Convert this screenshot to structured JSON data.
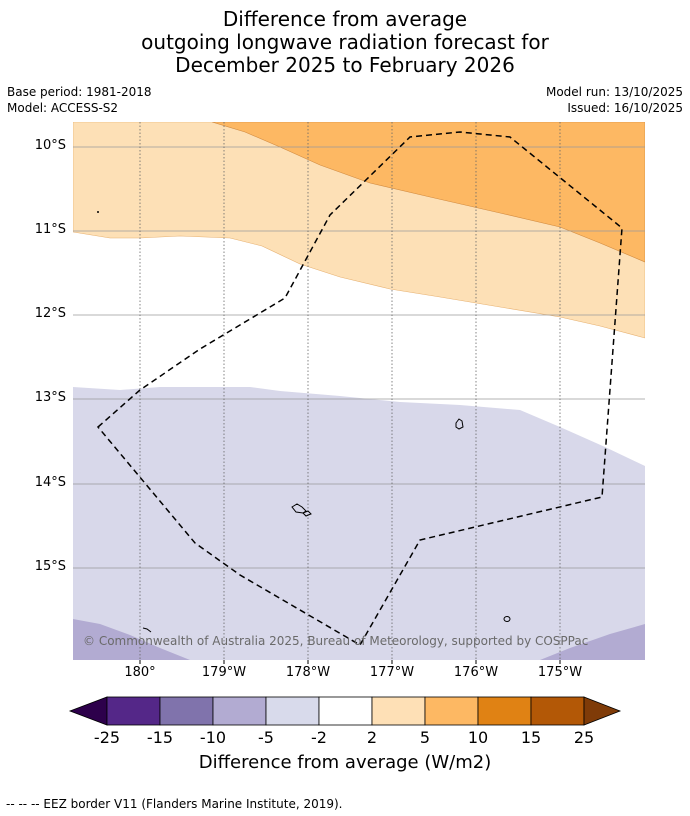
{
  "title": {
    "line1": "Difference from average",
    "line2": "outgoing longwave radiation forecast for",
    "line3": "December 2025 to February 2026"
  },
  "meta": {
    "base_period": "Base period: 1981-2018",
    "model": "Model: ACCESS-S2",
    "model_run": "Model run: 13/10/2025",
    "issued": "Issued: 16/10/2025"
  },
  "map": {
    "lat_labels": [
      "10°S",
      "11°S",
      "12°S",
      "13°S",
      "14°S",
      "15°S"
    ],
    "lon_labels": [
      "180°",
      "179°W",
      "178°W",
      "177°W",
      "176°W",
      "175°W"
    ],
    "copyright": "© Commonwealth of Australia 2025, Bureau of Meteorology, supported by COSPPac",
    "colors": {
      "neg_2_5": "#d8d8ea",
      "neg_5_10": "#b2abd2",
      "pos_2_5": "#fde0b6",
      "pos_5_10": "#fdb863"
    }
  },
  "colorbar": {
    "ticks": [
      "-25",
      "-15",
      "-10",
      "-5",
      "-2",
      "2",
      "5",
      "10",
      "15",
      "25"
    ],
    "label": "Difference from average (W/m2)",
    "colors": [
      "#2d004b",
      "#542788",
      "#8073ac",
      "#b2abd2",
      "#d8daeb",
      "#ffffff",
      "#fee0b6",
      "#fdb863",
      "#e08214",
      "#b35806",
      "#7f3b08"
    ]
  },
  "footer": "--  --  -- EEZ border V11 (Flanders Marine Institute, 2019)."
}
